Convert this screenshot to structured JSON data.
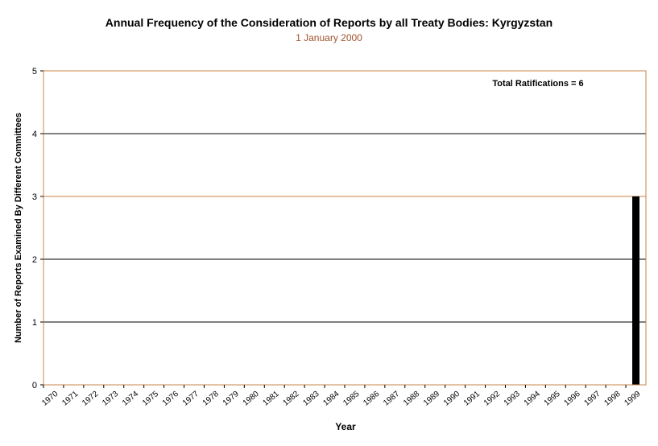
{
  "chart_data": {
    "type": "bar",
    "title": "Annual Frequency of the Consideration of Reports by all Treaty Bodies: Kyrgyzstan",
    "subtitle": "1 January 2000",
    "xlabel": "Year",
    "ylabel": "Number of Reports Examined By Different Committees",
    "annotation": "Total Ratifications = 6",
    "categories": [
      "1970",
      "1971",
      "1972",
      "1973",
      "1974",
      "1975",
      "1976",
      "1977",
      "1978",
      "1979",
      "1980",
      "1981",
      "1982",
      "1983",
      "1984",
      "1985",
      "1986",
      "1987",
      "1988",
      "1989",
      "1990",
      "1991",
      "1992",
      "1993",
      "1994",
      "1995",
      "1996",
      "1997",
      "1998",
      "1999"
    ],
    "values": [
      0,
      0,
      0,
      0,
      0,
      0,
      0,
      0,
      0,
      0,
      0,
      0,
      0,
      0,
      0,
      0,
      0,
      0,
      0,
      0,
      0,
      0,
      0,
      0,
      0,
      0,
      0,
      0,
      0,
      3
    ],
    "ylim": [
      0,
      5
    ],
    "yticks": [
      0,
      1,
      2,
      3,
      4,
      5
    ],
    "grid": true,
    "colors": {
      "bar": "#000000",
      "frame": "#c8864a",
      "grid": "#000000",
      "highlight_line": "#c8864a",
      "subtitle": "#a0522d"
    }
  }
}
